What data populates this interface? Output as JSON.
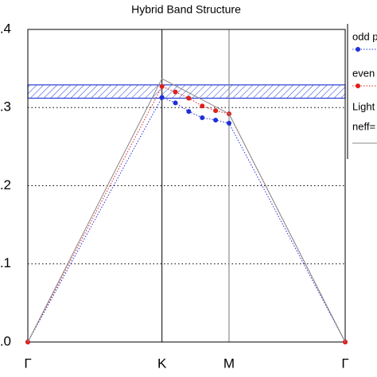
{
  "chart_data": {
    "type": "line",
    "title": "Hybrid Band Structure",
    "x_ticks_note": null,
    "xlim": [
      0,
      2.366
    ],
    "xticks": [
      {
        "value": 0,
        "label": "Γ"
      },
      {
        "value": 1,
        "label": "K"
      },
      {
        "value": 1.5,
        "label": "M"
      },
      {
        "value": 2.366,
        "label": "Γ"
      }
    ],
    "ylim": [
      0,
      0.4
    ],
    "yticks": [
      {
        "value": 0,
        "label": ".0"
      },
      {
        "value": 0.1,
        "label": ".1"
      },
      {
        "value": 0.2,
        "label": ".2"
      },
      {
        "value": 0.3,
        "label": ".3"
      },
      {
        "value": 0.4,
        "label": ".4"
      }
    ],
    "grid": true,
    "band": [
      0.312,
      0.329
    ],
    "band_color": "#2b3fd6",
    "series": [
      {
        "name": "odd p",
        "color": "#1f2fd8",
        "x": [
          0,
          1,
          1.1,
          1.2,
          1.3,
          1.4,
          1.5,
          2.366
        ],
        "values": [
          0,
          0.313,
          0.306,
          0.295,
          0.287,
          0.284,
          0.28,
          0
        ]
      },
      {
        "name": "even",
        "color": "#e0201a",
        "x": [
          0,
          1,
          1.1,
          1.2,
          1.3,
          1.4,
          1.5,
          2.366
        ],
        "values": [
          0,
          0.327,
          0.32,
          0.312,
          0.302,
          0.296,
          0.292,
          0
        ]
      },
      {
        "name": "Light",
        "note": "neff=",
        "color": "#888888",
        "x": [
          0,
          1,
          1.5,
          2.366
        ],
        "values": [
          0,
          0.337,
          0.292,
          0
        ]
      }
    ]
  }
}
